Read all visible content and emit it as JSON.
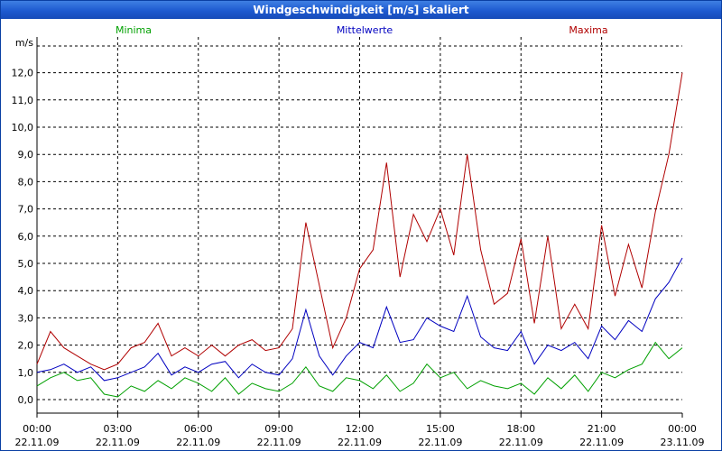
{
  "window": {
    "title": "Windgeschwindigkeit [m/s] skaliert"
  },
  "colors": {
    "minima": "#00a000",
    "mean": "#0000c0",
    "maxima": "#b00000",
    "grid": "#000000",
    "titlebar": "#1d5ad0"
  },
  "chart_data": {
    "type": "line",
    "title": "Windgeschwindigkeit [m/s] skaliert",
    "ylabel": "m/s",
    "ylim": [
      0,
      13
    ],
    "y_ticks": [
      "0,0",
      "1,0",
      "2,0",
      "3,0",
      "4,0",
      "5,0",
      "6,0",
      "7,0",
      "8,0",
      "9,0",
      "10,0",
      "11,0",
      "12,0"
    ],
    "x_ticks": [
      {
        "time": "00:00",
        "date": "22.11.09"
      },
      {
        "time": "03:00",
        "date": "22.11.09"
      },
      {
        "time": "06:00",
        "date": "22.11.09"
      },
      {
        "time": "09:00",
        "date": "22.11.09"
      },
      {
        "time": "12:00",
        "date": "22.11.09"
      },
      {
        "time": "15:00",
        "date": "22.11.09"
      },
      {
        "time": "18:00",
        "date": "22.11.09"
      },
      {
        "time": "21:00",
        "date": "22.11.09"
      },
      {
        "time": "00:00",
        "date": "23.11.09"
      }
    ],
    "x_range_hours": [
      0,
      24
    ],
    "grid": true,
    "legend": [
      "Minima",
      "Mittelwerte",
      "Maxima"
    ],
    "series": [
      {
        "name": "Minima",
        "color": "#00a000",
        "x": [
          0,
          0.5,
          1,
          1.5,
          2,
          2.5,
          3,
          3.5,
          4,
          4.5,
          5,
          5.5,
          6,
          6.5,
          7,
          7.5,
          8,
          8.5,
          9,
          9.5,
          10,
          10.5,
          11,
          11.5,
          12,
          12.5,
          13,
          13.5,
          14,
          14.5,
          15,
          15.5,
          16,
          16.5,
          17,
          17.5,
          18,
          18.5,
          19,
          19.5,
          20,
          20.5,
          21,
          21.5,
          22,
          22.5,
          23,
          23.5,
          24
        ],
        "values": [
          0.5,
          0.8,
          1.0,
          0.7,
          0.8,
          0.2,
          0.1,
          0.5,
          0.3,
          0.7,
          0.4,
          0.8,
          0.6,
          0.3,
          0.8,
          0.2,
          0.6,
          0.4,
          0.3,
          0.6,
          1.2,
          0.5,
          0.3,
          0.8,
          0.7,
          0.4,
          0.9,
          0.3,
          0.6,
          1.3,
          0.8,
          1.0,
          0.4,
          0.7,
          0.5,
          0.4,
          0.6,
          0.2,
          0.8,
          0.4,
          0.9,
          0.3,
          1.0,
          0.8,
          1.1,
          1.3,
          2.1,
          1.5,
          1.9
        ]
      },
      {
        "name": "Mittelwerte",
        "color": "#0000c0",
        "x": [
          0,
          0.5,
          1,
          1.5,
          2,
          2.5,
          3,
          3.5,
          4,
          4.5,
          5,
          5.5,
          6,
          6.5,
          7,
          7.5,
          8,
          8.5,
          9,
          9.5,
          10,
          10.5,
          11,
          11.5,
          12,
          12.5,
          13,
          13.5,
          14,
          14.5,
          15,
          15.5,
          16,
          16.5,
          17,
          17.5,
          18,
          18.5,
          19,
          19.5,
          20,
          20.5,
          21,
          21.5,
          22,
          22.5,
          23,
          23.5,
          24
        ],
        "values": [
          1.0,
          1.1,
          1.3,
          1.0,
          1.2,
          0.7,
          0.8,
          1.0,
          1.2,
          1.7,
          0.9,
          1.2,
          1.0,
          1.3,
          1.4,
          0.8,
          1.3,
          1.0,
          0.9,
          1.5,
          3.3,
          1.6,
          0.9,
          1.6,
          2.1,
          1.9,
          3.4,
          2.1,
          2.2,
          3.0,
          2.7,
          2.5,
          3.8,
          2.3,
          1.9,
          1.8,
          2.5,
          1.3,
          2.0,
          1.8,
          2.1,
          1.5,
          2.7,
          2.2,
          2.9,
          2.5,
          3.7,
          4.3,
          5.2
        ]
      },
      {
        "name": "Maxima",
        "color": "#b00000",
        "x": [
          0,
          0.5,
          1,
          1.5,
          2,
          2.5,
          3,
          3.5,
          4,
          4.5,
          5,
          5.5,
          6,
          6.5,
          7,
          7.5,
          8,
          8.5,
          9,
          9.5,
          10,
          10.5,
          11,
          11.5,
          12,
          12.5,
          13,
          13.5,
          14,
          14.5,
          15,
          15.5,
          16,
          16.5,
          17,
          17.5,
          18,
          18.5,
          19,
          19.5,
          20,
          20.5,
          21,
          21.5,
          22,
          22.5,
          23,
          23.5,
          24
        ],
        "values": [
          1.3,
          2.5,
          1.9,
          1.6,
          1.3,
          1.1,
          1.3,
          1.9,
          2.1,
          2.8,
          1.6,
          1.9,
          1.6,
          2.0,
          1.6,
          2.0,
          2.2,
          1.8,
          1.9,
          2.6,
          6.5,
          4.2,
          1.9,
          3.0,
          4.8,
          5.5,
          8.7,
          4.5,
          6.8,
          5.8,
          7.0,
          5.3,
          9.0,
          5.5,
          3.5,
          3.9,
          5.9,
          2.8,
          6.0,
          2.6,
          3.5,
          2.6,
          6.4,
          3.8,
          5.7,
          4.1,
          6.9,
          9.0,
          12.0
        ]
      }
    ]
  }
}
